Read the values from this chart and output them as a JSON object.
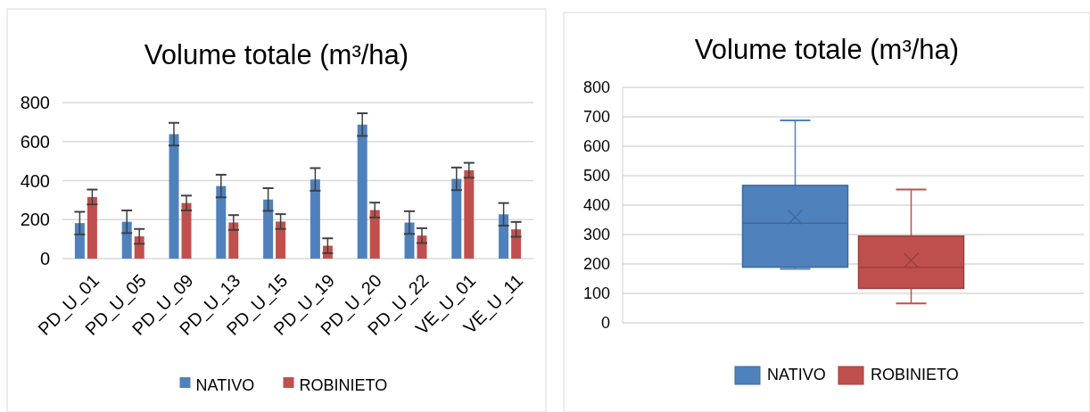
{
  "chart_data": [
    {
      "type": "bar",
      "title": "Volume totale (m³/ha)",
      "categories": [
        "PD_U_01",
        "PD_U_05",
        "PD_U_09",
        "PD_U_13",
        "PD_U_15",
        "PD_U_19",
        "PD_U_20",
        "PD_U_22",
        "VE_U_01",
        "VE_U_11"
      ],
      "series": [
        {
          "name": "NATIVO",
          "color": "#4f81bd",
          "values": [
            182,
            189,
            638,
            372,
            303,
            406,
            687,
            185,
            409,
            227
          ],
          "errors": [
            58,
            58,
            58,
            58,
            58,
            58,
            58,
            58,
            58,
            58
          ]
        },
        {
          "name": "ROBINIETO",
          "color": "#c0504d",
          "values": [
            316,
            114,
            285,
            185,
            190,
            66,
            249,
            118,
            453,
            150
          ],
          "errors": [
            38,
            38,
            38,
            38,
            38,
            38,
            38,
            38,
            38,
            38
          ]
        }
      ],
      "ylim": [
        0,
        800
      ],
      "yticks": [
        0,
        200,
        400,
        600,
        800
      ],
      "grid": "y",
      "legend": "bottom"
    },
    {
      "type": "box",
      "title": "Volume totale (m³/ha)",
      "categories": [
        null
      ],
      "series": [
        {
          "name": "NATIVO",
          "color": "#4f81bd",
          "boxes": [
            {
              "low": 183,
              "q1": 189,
              "median": 339,
              "q3": 467,
              "high": 688,
              "mean": 359
            }
          ]
        },
        {
          "name": "ROBINIETO",
          "color": "#c0504d",
          "boxes": [
            {
              "low": 66,
              "q1": 117,
              "median": 189,
              "q3": 295,
              "high": 453,
              "mean": 212
            }
          ]
        }
      ],
      "ylim": [
        0,
        800
      ],
      "yticks": [
        0,
        100,
        200,
        300,
        400,
        500,
        600,
        700,
        800
      ],
      "grid": "y",
      "legend": "bottom"
    }
  ]
}
